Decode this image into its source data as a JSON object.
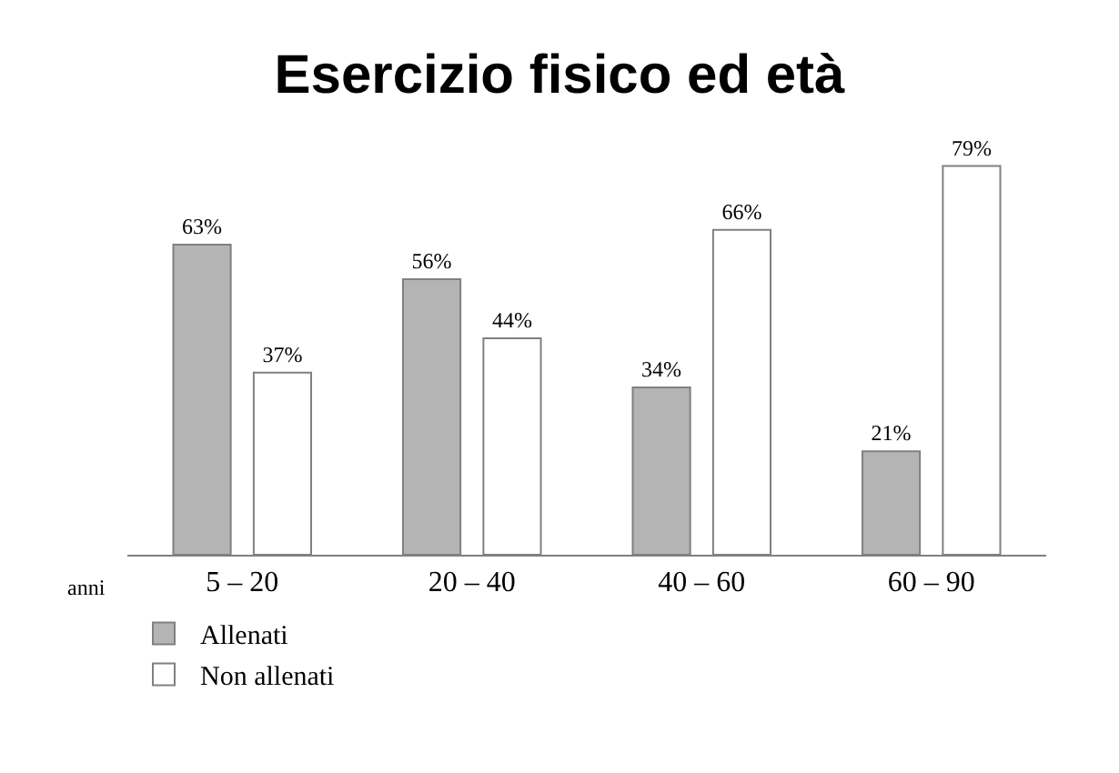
{
  "chart_data": {
    "type": "bar",
    "title": "Esercizio fisico ed età",
    "xlabel": "anni",
    "categories": [
      "5 – 20",
      "20 – 40",
      "40 – 60",
      "60 – 90"
    ],
    "series": [
      {
        "name": "Allenati",
        "color": "#b4b4b4",
        "values": [
          63,
          56,
          34,
          21
        ],
        "value_labels": [
          "63%",
          "56%",
          "34%",
          "21%"
        ]
      },
      {
        "name": "Non allenati",
        "color": "#ffffff",
        "values": [
          37,
          44,
          66,
          79
        ],
        "value_labels": [
          "37%",
          "44%",
          "66%",
          "79%"
        ]
      }
    ],
    "legend": "bottom left"
  }
}
